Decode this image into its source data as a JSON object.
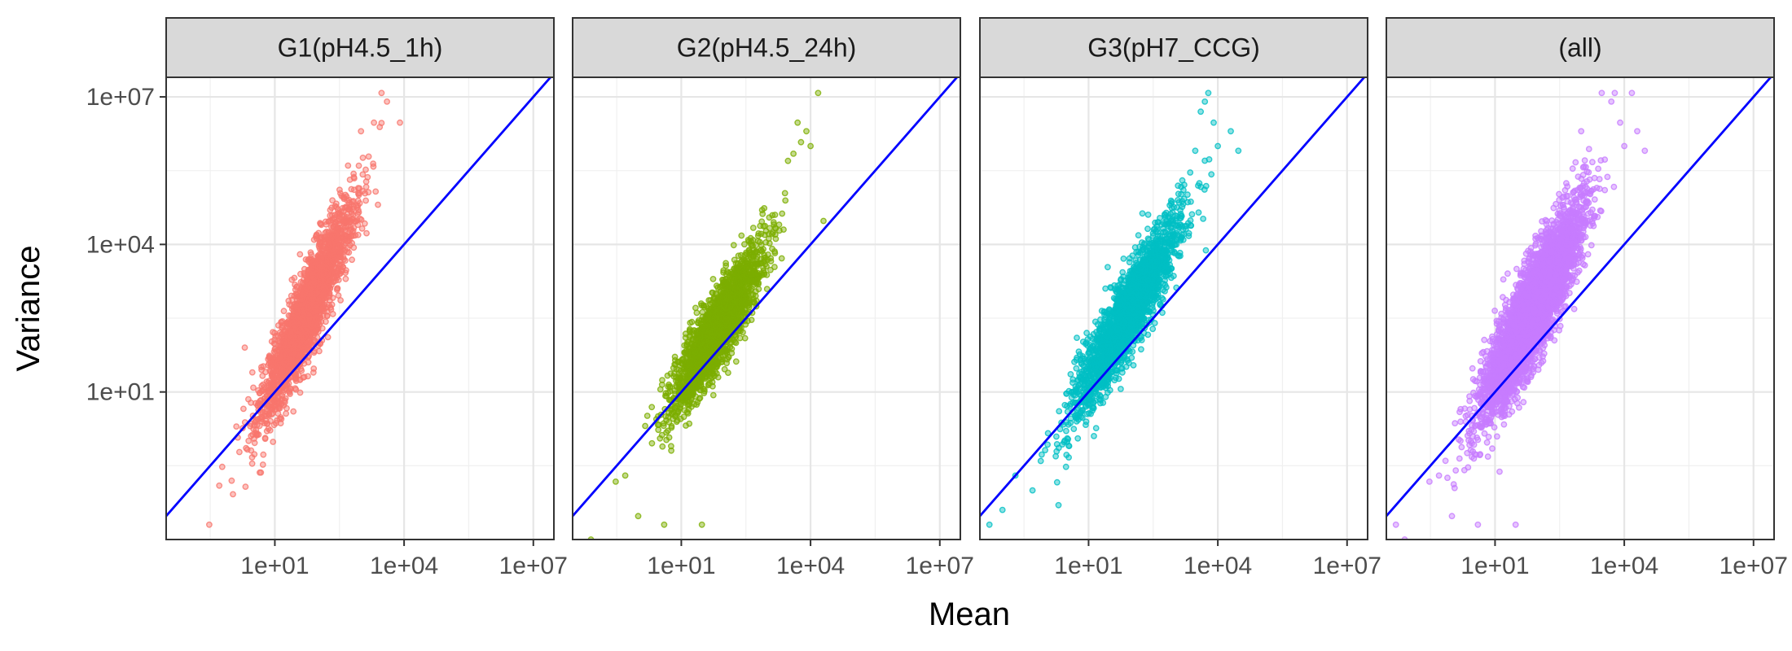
{
  "chart_data": {
    "type": "scatter",
    "layout": "faceted, 4 panels in one row, shared axes",
    "xlabel": "Mean",
    "ylabel": "Variance",
    "x_scale": "log10",
    "y_scale": "log10",
    "xlim": [
      0.03,
      30000000
    ],
    "ylim": [
      0.01,
      25000000
    ],
    "x_ticks": [
      {
        "value": 10,
        "label": "1e+01"
      },
      {
        "value": 10000,
        "label": "1e+04"
      },
      {
        "value": 10000000,
        "label": "1e+07"
      }
    ],
    "y_ticks": [
      {
        "value": 10,
        "label": "1e+01"
      },
      {
        "value": 10000,
        "label": "1e+04"
      },
      {
        "value": 10000000,
        "label": "1e+07"
      }
    ],
    "grid": true,
    "reference_line": {
      "type": "identity",
      "equation": "Variance = Mean",
      "color": "#0000ff"
    },
    "panels": [
      {
        "title": "G1(pH4.5_1h)",
        "color": "#f8766d",
        "point_cloud": {
          "n_points": 2200,
          "log10_mean_center": 1.75,
          "log10_mean_sd": 0.55,
          "slope": 1.85,
          "intercept_at_log10_mean_0": -0.6,
          "residual_sd_log10": 0.45,
          "log10_mean_range": [
            -0.6,
            4.1
          ]
        },
        "points": [
          [
            0.3,
            0.02
          ],
          [
            0.6,
            0.3
          ],
          [
            1.5,
            0.6
          ],
          [
            2,
            80
          ],
          [
            3,
            25
          ],
          [
            5,
            3
          ],
          [
            8,
            40
          ],
          [
            15,
            200
          ],
          [
            30,
            1200
          ],
          [
            60,
            3000
          ],
          [
            120,
            25000
          ],
          [
            250,
            60000
          ],
          [
            500,
            400000
          ],
          [
            1000,
            2000000
          ],
          [
            2000,
            3000000
          ],
          [
            3000,
            12000000
          ],
          [
            4000,
            8000000
          ],
          [
            8000,
            3000000
          ]
        ]
      },
      {
        "title": "G2(pH4.5_24h)",
        "color": "#7cae00",
        "point_cloud": {
          "n_points": 2200,
          "log10_mean_center": 1.85,
          "log10_mean_sd": 0.5,
          "slope": 1.35,
          "intercept_at_log10_mean_0": -0.2,
          "residual_sd_log10": 0.4,
          "log10_mean_range": [
            -0.9,
            4.2
          ]
        },
        "points": [
          [
            0.08,
            0.01
          ],
          [
            0.3,
            0.15
          ],
          [
            0.5,
            0.2
          ],
          [
            1,
            0.03
          ],
          [
            4,
            0.02
          ],
          [
            30,
            0.02
          ],
          [
            300,
            1000
          ],
          [
            800,
            8000
          ],
          [
            1500,
            40000
          ],
          [
            3000,
            500000
          ],
          [
            4000,
            700000
          ],
          [
            6000,
            1200000
          ],
          [
            8000,
            2000000
          ],
          [
            10000,
            1000000
          ],
          [
            15000,
            12000000
          ],
          [
            5000,
            3000000
          ],
          [
            20000,
            30000
          ]
        ]
      },
      {
        "title": "G3(pH7_CCG)",
        "color": "#00bfc4",
        "point_cloud": {
          "n_points": 2200,
          "log10_mean_center": 1.9,
          "log10_mean_sd": 0.62,
          "slope": 1.45,
          "intercept_at_log10_mean_0": -0.2,
          "residual_sd_log10": 0.42,
          "log10_mean_range": [
            -1.1,
            4.3
          ]
        },
        "points": [
          [
            0.05,
            0.02
          ],
          [
            0.1,
            0.04
          ],
          [
            0.2,
            0.2
          ],
          [
            0.5,
            0.1
          ],
          [
            2,
            0.05
          ],
          [
            200,
            200
          ],
          [
            500,
            12000
          ],
          [
            1500,
            200000
          ],
          [
            3000,
            800000
          ],
          [
            4000,
            5000000
          ],
          [
            5000,
            8000000
          ],
          [
            6000,
            12000000
          ],
          [
            8000,
            3000000
          ],
          [
            10000,
            1000000
          ],
          [
            20000,
            2000000
          ],
          [
            30000,
            800000
          ]
        ]
      },
      {
        "title": "(all)",
        "color": "#c77cff",
        "point_cloud": {
          "n_points": 4500,
          "log10_mean_center": 1.85,
          "log10_mean_sd": 0.58,
          "slope": 1.6,
          "intercept_at_log10_mean_0": -0.35,
          "residual_sd_log10": 0.48,
          "log10_mean_range": [
            -1.1,
            4.3
          ]
        },
        "points": [
          [
            0.05,
            0.02
          ],
          [
            0.08,
            0.01
          ],
          [
            0.3,
            0.15
          ],
          [
            0.5,
            0.2
          ],
          [
            1,
            0.03
          ],
          [
            4,
            0.02
          ],
          [
            30,
            0.02
          ],
          [
            1000,
            2000000
          ],
          [
            3000,
            12000000
          ],
          [
            5000,
            8000000
          ],
          [
            6000,
            12000000
          ],
          [
            8000,
            3000000
          ],
          [
            10000,
            1000000
          ],
          [
            15000,
            12000000
          ],
          [
            20000,
            2000000
          ],
          [
            30000,
            800000
          ]
        ]
      }
    ]
  }
}
